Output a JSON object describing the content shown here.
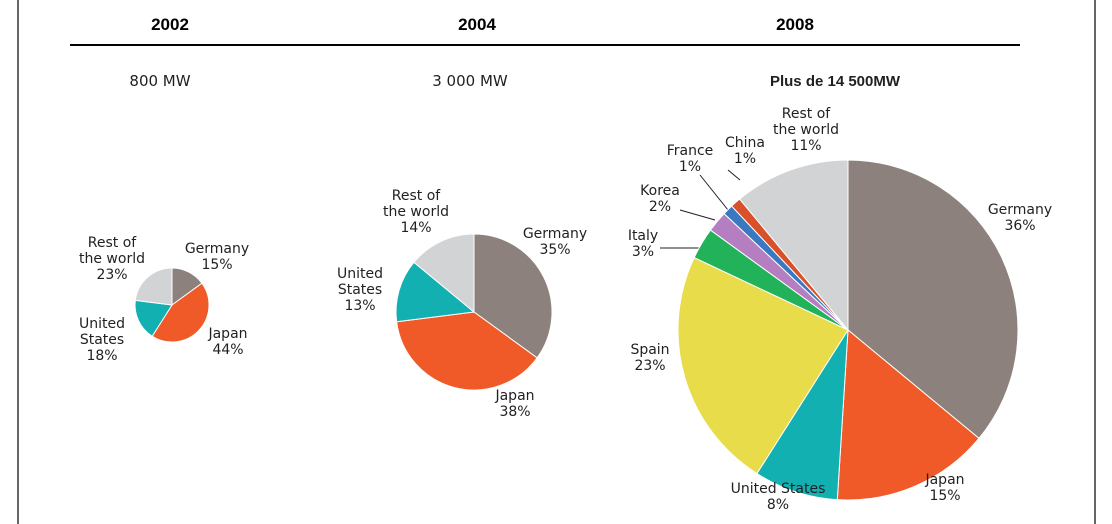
{
  "chart_data": [
    {
      "type": "pie",
      "title": "2002",
      "subtitle": "800 MW",
      "categories": [
        "Germany",
        "Japan",
        "United States",
        "Rest of the world"
      ],
      "values": [
        15,
        44,
        18,
        23
      ],
      "value_labels": [
        "15%",
        "44%",
        "18%",
        "23%"
      ],
      "colors": [
        "#8c817c",
        "#f05a28",
        "#12b0b0",
        "#d2d3d5"
      ]
    },
    {
      "type": "pie",
      "title": "2004",
      "subtitle": "3 000 MW",
      "categories": [
        "Germany",
        "Japan",
        "United States",
        "Rest of the world"
      ],
      "values": [
        35,
        38,
        13,
        14
      ],
      "value_labels": [
        "35%",
        "38%",
        "13%",
        "14%"
      ],
      "colors": [
        "#8c817c",
        "#f05a28",
        "#12b0b0",
        "#d2d3d5"
      ]
    },
    {
      "type": "pie",
      "title": "2008",
      "subtitle": "Plus de 14 500MW",
      "categories": [
        "Germany",
        "Japan",
        "United States",
        "Spain",
        "Italy",
        "Korea",
        "France",
        "China",
        "Rest of the world"
      ],
      "values": [
        36,
        15,
        8,
        23,
        3,
        2,
        1,
        1,
        11
      ],
      "value_labels": [
        "36%",
        "15%",
        "8%",
        "23%",
        "3%",
        "2%",
        "1%",
        "1%",
        "11%"
      ],
      "colors": [
        "#8c817c",
        "#f05a28",
        "#12b0b0",
        "#e8dc4a",
        "#22b35a",
        "#b57ec0",
        "#3a78c0",
        "#d9512b",
        "#d2d3d5"
      ]
    }
  ]
}
